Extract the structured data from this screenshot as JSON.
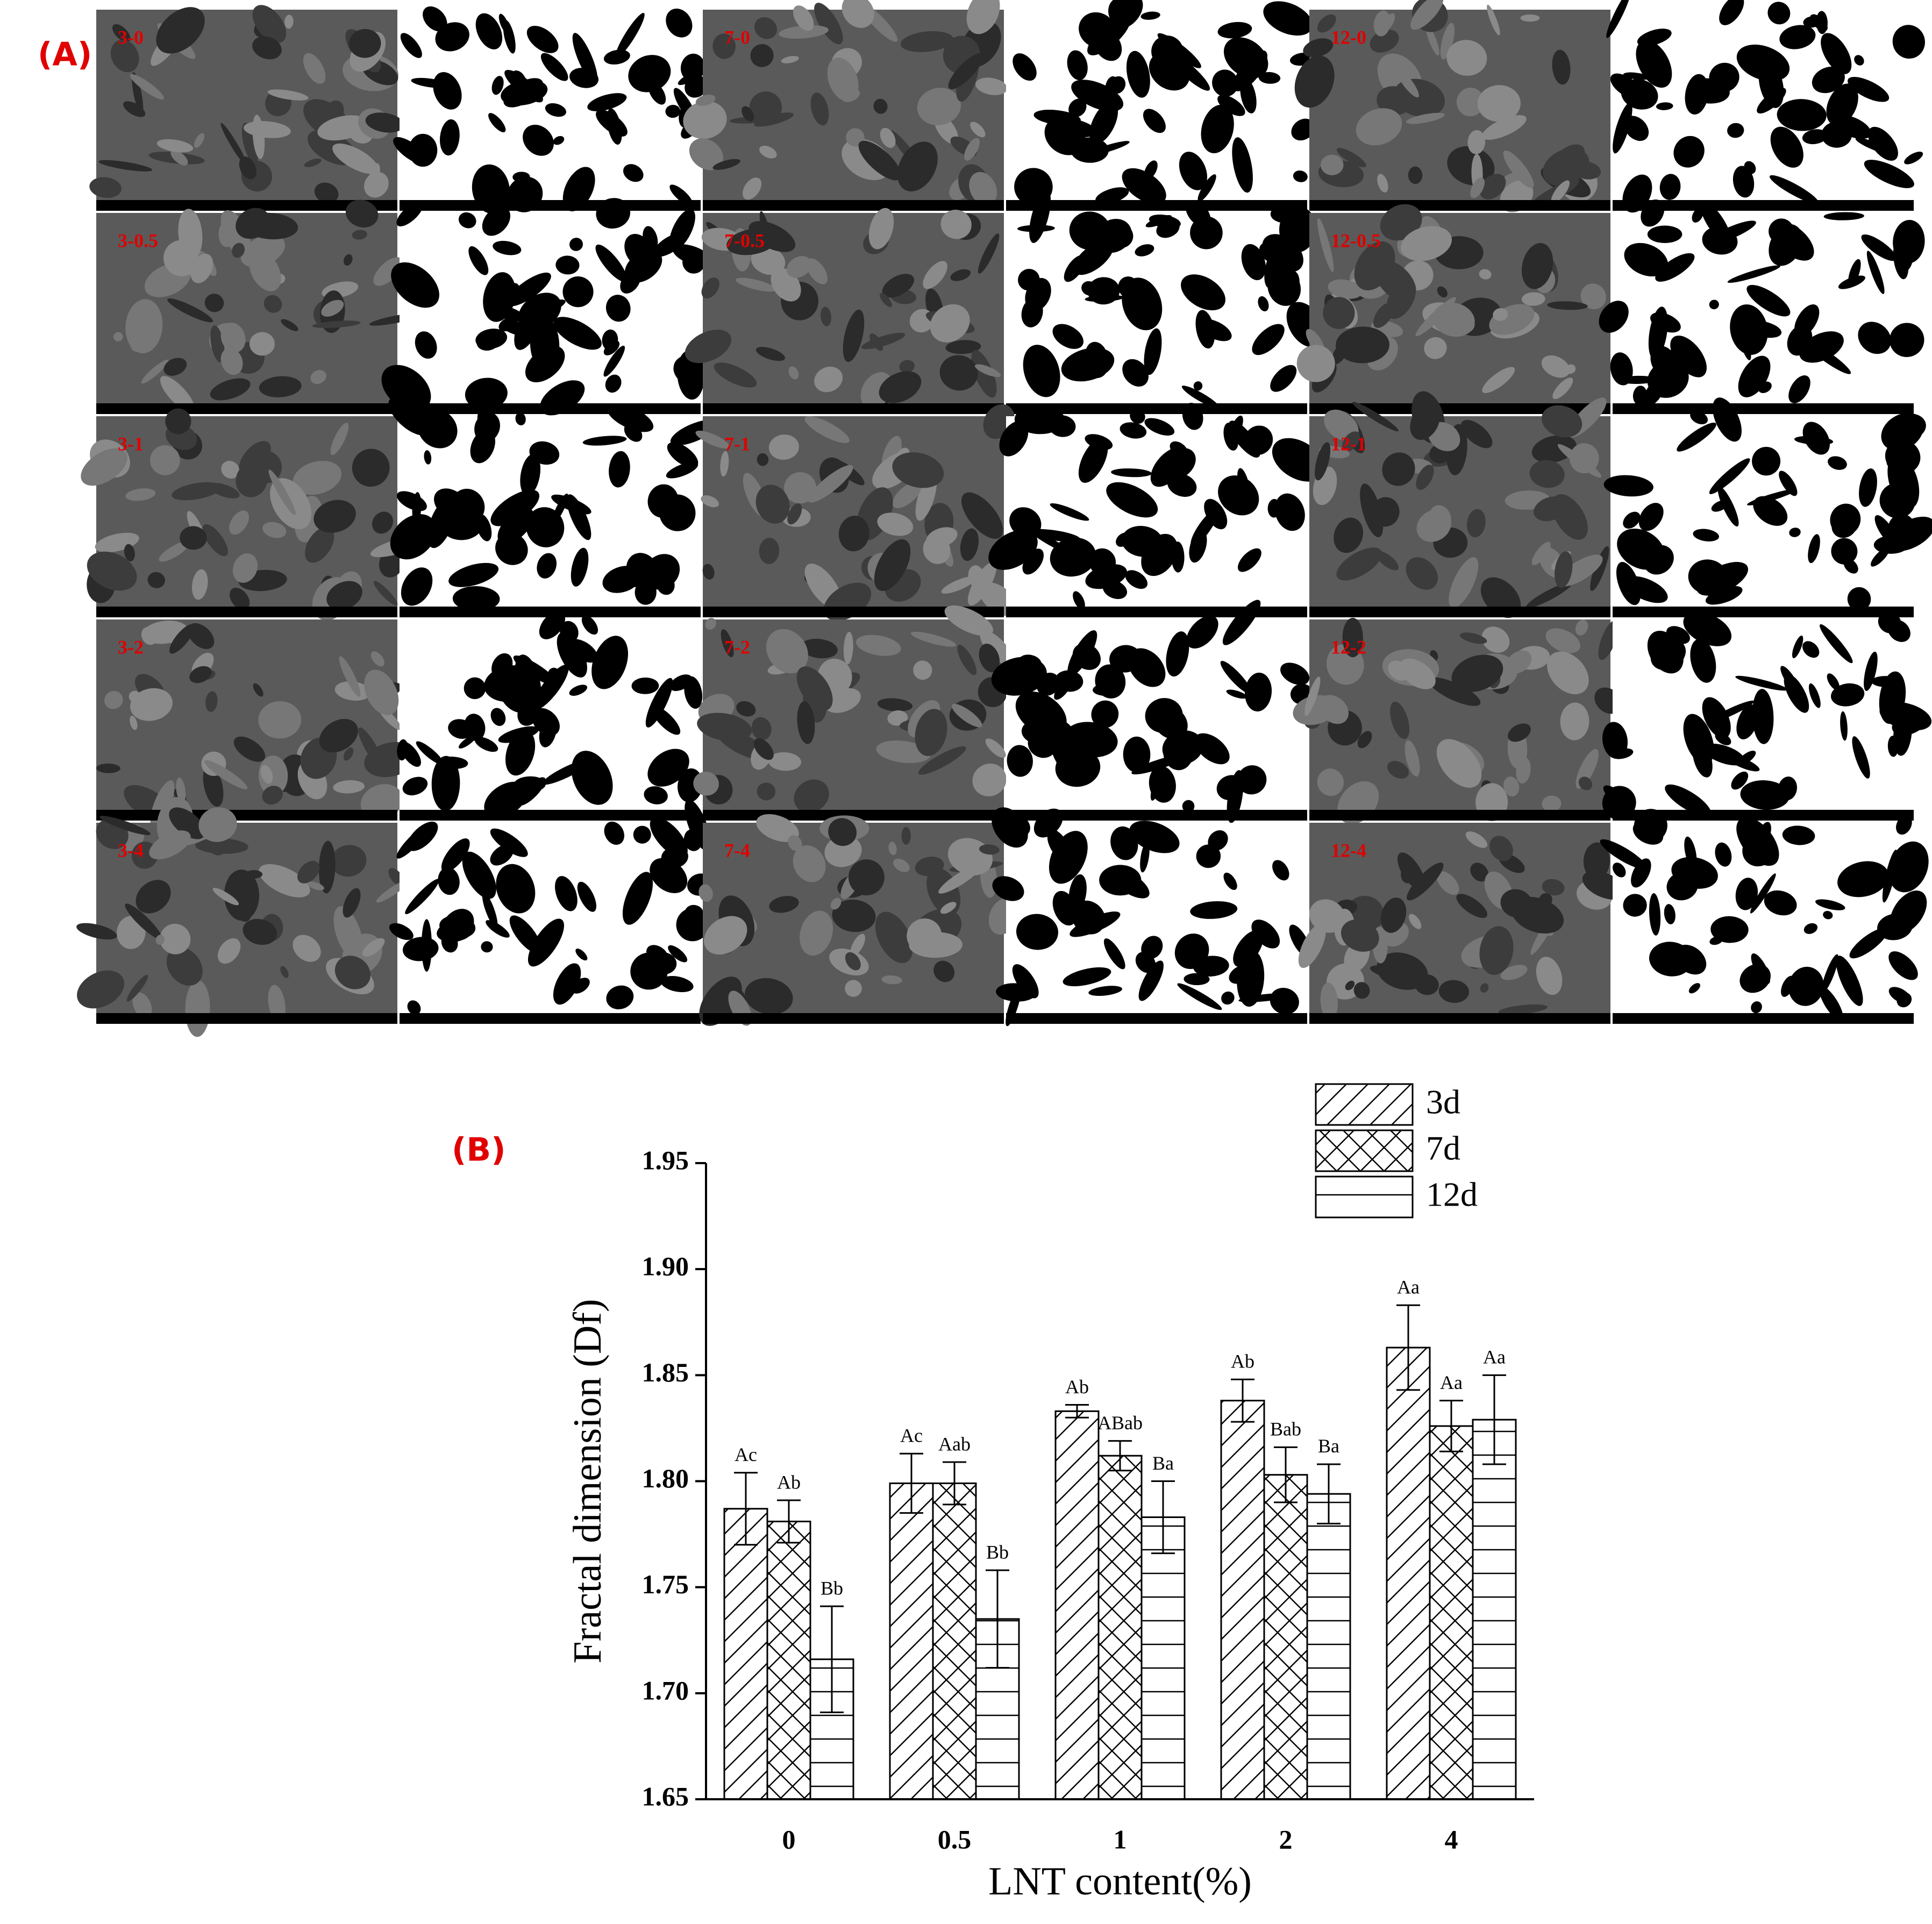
{
  "panel_a": {
    "label": "(A)",
    "image_labels": [
      [
        "3-0",
        "7-0",
        "12-0"
      ],
      [
        "3-0.5",
        "7-0.5",
        "12-0.5"
      ],
      [
        "3-1",
        "7-1",
        "12-1"
      ],
      [
        "3-2",
        "7-2",
        "12-2"
      ],
      [
        "3-4",
        "7-4",
        "12-4"
      ]
    ]
  },
  "panel_b_label": "(B)",
  "chart_data": {
    "type": "bar",
    "x_label": "LNT content(%)",
    "y_label": "Fractal dimension (Df)",
    "categories": [
      "0",
      "0.5",
      "1",
      "2",
      "4"
    ],
    "series": [
      {
        "name": "3d",
        "color": "#000000",
        "pattern": "diagonal",
        "values": [
          1.787,
          1.799,
          1.833,
          1.838,
          1.863
        ],
        "errors": [
          0.017,
          0.014,
          0.003,
          0.01,
          0.02
        ],
        "labels": [
          "Ac",
          "Ac",
          "Ab",
          "Ab",
          "Aa"
        ]
      },
      {
        "name": "7d",
        "color": "#000000",
        "pattern": "crosshatch",
        "values": [
          1.781,
          1.799,
          1.812,
          1.803,
          1.826
        ],
        "errors": [
          0.01,
          0.01,
          0.007,
          0.013,
          0.012
        ],
        "labels": [
          "Ab",
          "Aab",
          "ABab",
          "Bab",
          "Aa"
        ]
      },
      {
        "name": "12d",
        "color": "#000000",
        "pattern": "horizontal",
        "values": [
          1.716,
          1.735,
          1.783,
          1.794,
          1.829
        ],
        "errors": [
          0.025,
          0.023,
          0.017,
          0.014,
          0.021
        ],
        "labels": [
          "Bb",
          "Bb",
          "Ba",
          "Ba",
          "Aa"
        ]
      }
    ],
    "ylim": [
      1.65,
      1.95
    ],
    "yticks": [
      1.65,
      {
        "value": 1.7,
        "label": "1.70"
      },
      1.75,
      {
        "value": 1.8,
        "label": "1.80"
      },
      1.85,
      {
        "value": 1.9,
        "label": "1.90"
      },
      1.95
    ],
    "legend": "upper right"
  }
}
